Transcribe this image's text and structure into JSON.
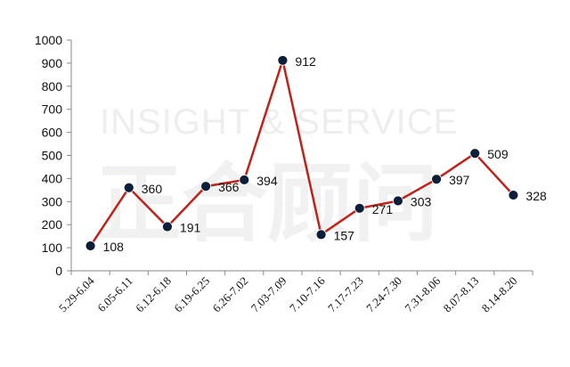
{
  "watermark": {
    "text_en": "INSIGHT & SERVICE",
    "text_cn": "正合顾问"
  },
  "chart_data": {
    "type": "line",
    "title": "",
    "xlabel": "",
    "ylabel": "",
    "categories": [
      "5.29-6.04",
      "6.05-6.11",
      "6.12-6.18",
      "6.19-6.25",
      "6.26-7.02",
      "7.03-7.09",
      "7.10-7.16",
      "7.17-7.23",
      "7.24-7.30",
      "7.31-8.06",
      "8.07-8.13",
      "8.14-8.20"
    ],
    "series": [
      {
        "values": [
          108,
          360,
          191,
          366,
          394,
          912,
          157,
          271,
          303,
          397,
          509,
          328
        ]
      }
    ],
    "ylim": [
      0,
      1000
    ],
    "yticks": [
      0,
      100,
      200,
      300,
      400,
      500,
      600,
      700,
      800,
      900,
      1000
    ],
    "grid": false,
    "legend": "none",
    "line_color": "#c0221a",
    "marker_color": "#0b1f3a"
  }
}
